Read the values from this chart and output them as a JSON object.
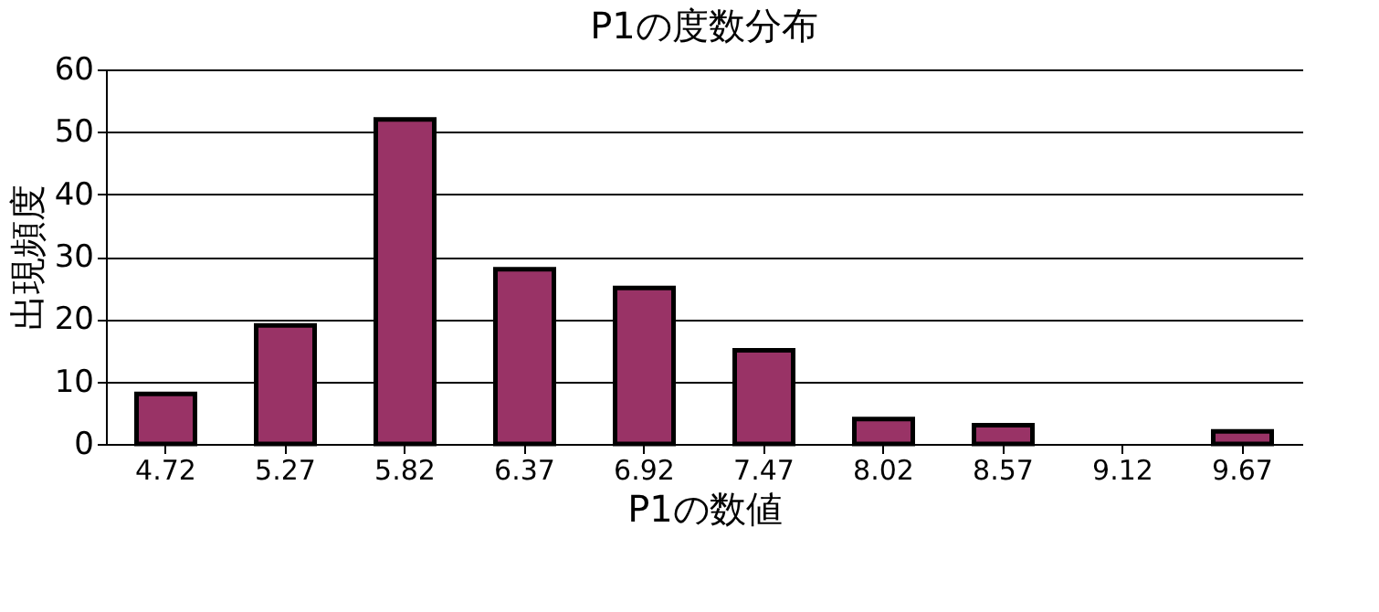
{
  "chart_data": {
    "type": "bar",
    "title": "P1の度数分布",
    "xlabel": "P1の数値",
    "ylabel": "出現頻度",
    "categories": [
      "4.72",
      "5.27",
      "5.82",
      "6.37",
      "6.92",
      "7.47",
      "8.02",
      "8.57",
      "9.12",
      "9.67"
    ],
    "values": [
      8,
      19,
      52,
      28,
      25,
      15,
      4,
      3,
      0,
      2
    ],
    "color": "#993366",
    "ylim": [
      0,
      60
    ],
    "yticks": [
      0,
      10,
      20,
      30,
      40,
      50,
      60
    ],
    "grid": "y"
  }
}
